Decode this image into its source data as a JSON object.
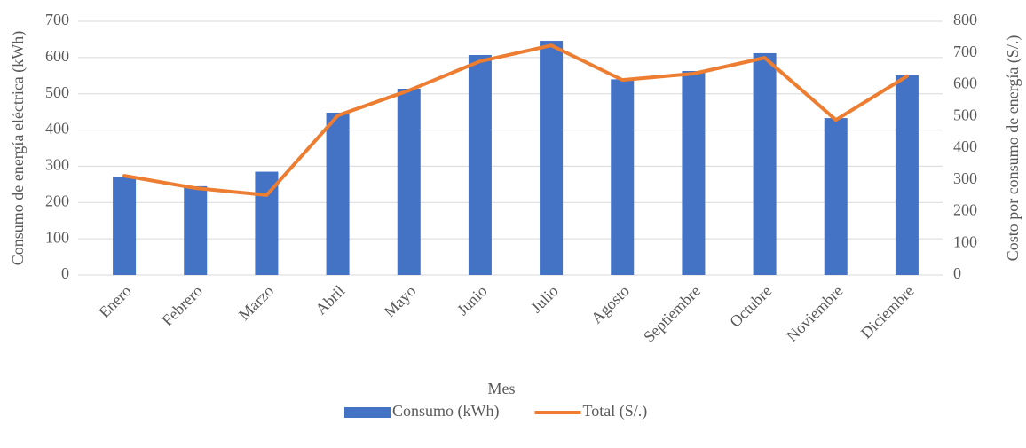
{
  "chart_data": {
    "type": "bar_line",
    "xlabel": "Mes",
    "ylabel": "Consumo de energía eléctrica (kWh)",
    "y2label": "Costo por consumo de energía (S/.)",
    "categories": [
      "Enero",
      "Febrero",
      "Marzo",
      "Abril",
      "Mayo",
      "Junio",
      "Julio",
      "Agosto",
      "Septiembre",
      "Octubre",
      "Noviembre",
      "Diciembre"
    ],
    "series": [
      {
        "name": "Consumo (kWh)",
        "type": "bar",
        "color": "#4472c4",
        "axis": "y",
        "values": [
          270,
          245,
          285,
          448,
          514,
          607,
          646,
          540,
          563,
          612,
          433,
          551
        ]
      },
      {
        "name": "Total (S/.)",
        "type": "line",
        "color": "#ed7d31",
        "axis": "y2",
        "values": [
          313,
          274,
          252,
          503,
          582,
          674,
          724,
          615,
          635,
          685,
          489,
          627
        ]
      }
    ],
    "ylim": [
      0,
      700
    ],
    "yticks": [
      0,
      100,
      200,
      300,
      400,
      500,
      600,
      700
    ],
    "y2lim": [
      0,
      800
    ],
    "y2ticks": [
      0,
      100,
      200,
      300,
      400,
      500,
      600,
      700,
      800
    ],
    "grid": true,
    "legend": "bottom"
  }
}
